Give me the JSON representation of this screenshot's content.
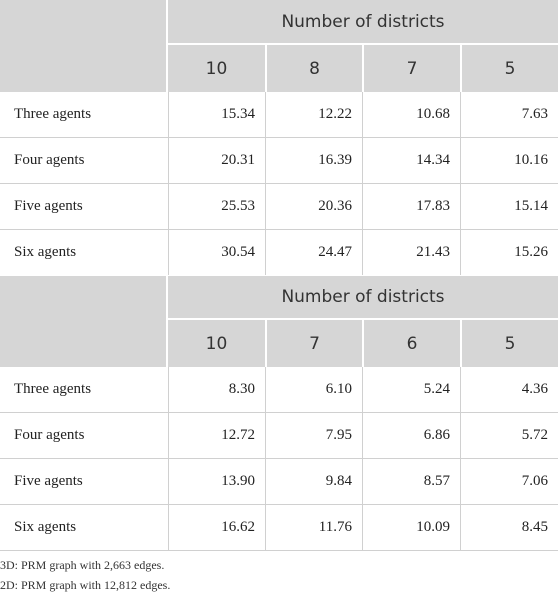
{
  "tables": [
    {
      "header": "Number of districts",
      "columns": [
        "10",
        "8",
        "7",
        "5"
      ],
      "rows": [
        {
          "label": "Three agents",
          "values": [
            "15.34",
            "12.22",
            "10.68",
            "7.63"
          ]
        },
        {
          "label": "Four agents",
          "values": [
            "20.31",
            "16.39",
            "14.34",
            "10.16"
          ]
        },
        {
          "label": "Five agents",
          "values": [
            "25.53",
            "20.36",
            "17.83",
            "15.14"
          ]
        },
        {
          "label": "Six agents",
          "values": [
            "30.54",
            "24.47",
            "21.43",
            "15.26"
          ]
        }
      ]
    },
    {
      "header": "Number of districts",
      "columns": [
        "10",
        "7",
        "6",
        "5"
      ],
      "rows": [
        {
          "label": "Three agents",
          "values": [
            "8.30",
            "6.10",
            "5.24",
            "4.36"
          ]
        },
        {
          "label": "Four agents",
          "values": [
            "12.72",
            "7.95",
            "6.86",
            "5.72"
          ]
        },
        {
          "label": "Five agents",
          "values": [
            "13.90",
            "9.84",
            "8.57",
            "7.06"
          ]
        },
        {
          "label": "Six agents",
          "values": [
            "16.62",
            "11.76",
            "10.09",
            "8.45"
          ]
        }
      ]
    }
  ],
  "footnotes": [
    "3D: PRM graph with 2,663 edges.",
    "2D: PRM graph with 12,812 edges."
  ]
}
